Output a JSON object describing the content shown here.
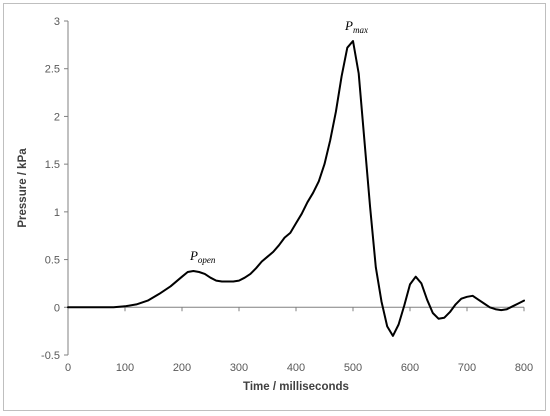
{
  "chart_data": {
    "type": "line",
    "title": "",
    "xlabel": "Time / milliseconds",
    "ylabel": "Pressure / kPa",
    "xlim": [
      0,
      800
    ],
    "ylim": [
      -0.5,
      3
    ],
    "xticks": [
      0,
      100,
      200,
      300,
      400,
      500,
      600,
      700,
      800
    ],
    "yticks": [
      -0.5,
      0,
      0.5,
      1,
      1.5,
      2,
      2.5,
      3
    ],
    "ytick_labels": [
      "-0.5",
      "0",
      "0.5",
      "1",
      "1.5",
      "2",
      "2.5",
      "3"
    ],
    "grid": false,
    "legend": "none",
    "line_color": "#000000",
    "series": [
      {
        "x": [
          0,
          20,
          40,
          60,
          80,
          100,
          120,
          140,
          160,
          180,
          200,
          210,
          220,
          230,
          240,
          250,
          260,
          270,
          280,
          290,
          300,
          310,
          320,
          330,
          340,
          350,
          360,
          370,
          380,
          390,
          400,
          410,
          420,
          430,
          440,
          450,
          460,
          470,
          480,
          490,
          500,
          510,
          520,
          530,
          540,
          550,
          560,
          570,
          580,
          590,
          600,
          610,
          620,
          630,
          640,
          650,
          660,
          670,
          680,
          690,
          700,
          710,
          720,
          730,
          740,
          750,
          760,
          770,
          780,
          790,
          800
        ],
        "y": [
          0.0,
          0.0,
          0.0,
          0.0,
          0.0,
          0.01,
          0.03,
          0.07,
          0.14,
          0.22,
          0.32,
          0.37,
          0.38,
          0.37,
          0.35,
          0.31,
          0.28,
          0.27,
          0.27,
          0.27,
          0.28,
          0.31,
          0.35,
          0.41,
          0.48,
          0.53,
          0.58,
          0.65,
          0.73,
          0.78,
          0.88,
          0.98,
          1.1,
          1.2,
          1.32,
          1.5,
          1.75,
          2.05,
          2.42,
          2.72,
          2.79,
          2.45,
          1.75,
          1.05,
          0.42,
          0.06,
          -0.2,
          -0.3,
          -0.18,
          0.02,
          0.24,
          0.32,
          0.25,
          0.08,
          -0.06,
          -0.12,
          -0.11,
          -0.05,
          0.03,
          0.09,
          0.11,
          0.12,
          0.08,
          0.04,
          0.0,
          -0.02,
          -0.03,
          -0.02,
          0.01,
          0.04,
          0.07
        ]
      }
    ],
    "annotations": [
      {
        "base": "P",
        "sub": "open",
        "x": 228,
        "y": 0.38
      },
      {
        "base": "P",
        "sub": "max",
        "x": 500,
        "y": 2.79
      }
    ]
  }
}
